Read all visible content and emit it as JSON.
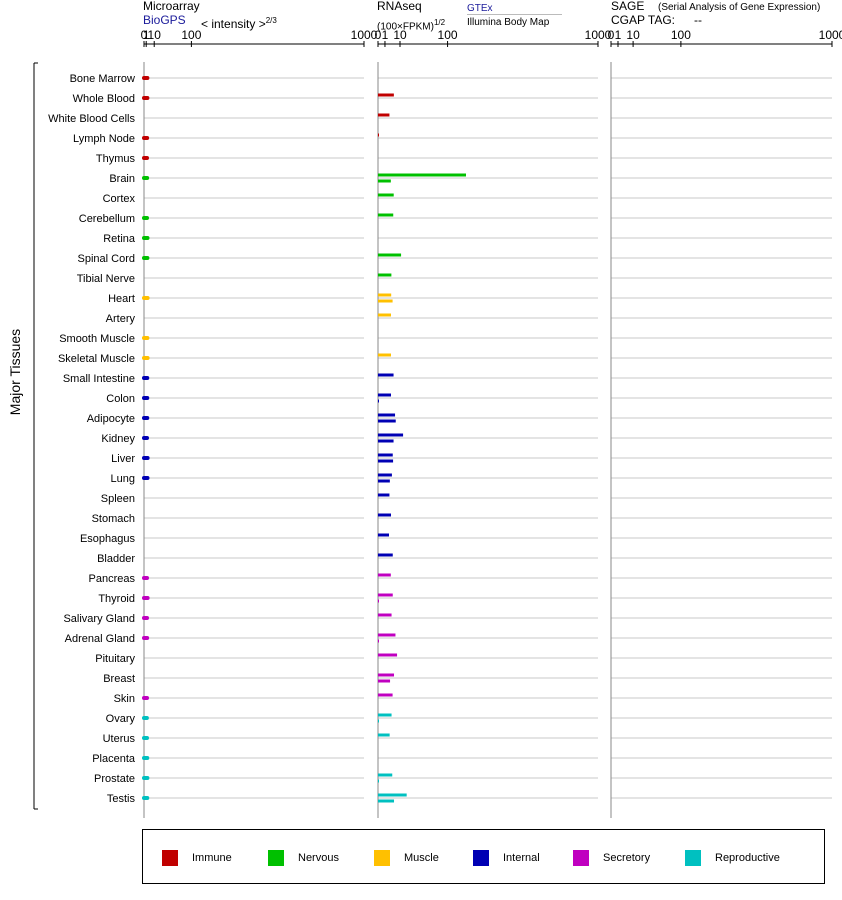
{
  "headers": {
    "microarray": {
      "title": "Microarray",
      "link": "BioGPS",
      "scale_label": "< intensity >",
      "scale_exp": "2/3"
    },
    "rnaseq": {
      "title": "RNAseq",
      "link": "GTEx",
      "scale_label": "(100×FPKM)",
      "scale_exp": "1/2",
      "second_label": "Illumina Body Map"
    },
    "sage": {
      "title": "SAGE",
      "subtitle": "(Serial Analysis of Gene Expression)",
      "tag_label": "CGAP TAG:",
      "tag_value": "--"
    }
  },
  "side_label": "Major Tissues",
  "colors": {
    "Immune": "#c00000",
    "Nervous": "#00c000",
    "Muscle": "#ffc000",
    "Internal": "#0000b4",
    "Secretory": "#c000c0",
    "Reproductive": "#00c0c0"
  },
  "legend": [
    "Immune",
    "Nervous",
    "Muscle",
    "Internal",
    "Secretory",
    "Reproductive"
  ],
  "chart_data": [
    {
      "type": "bar",
      "panel": "Microarray",
      "scale": "power-2/3",
      "xlim": [
        0,
        1000
      ],
      "x_ticks": [
        "0",
        "1",
        "10",
        "100",
        "1000"
      ],
      "categories": [
        "Bone Marrow",
        "Whole Blood",
        "White Blood Cells",
        "Lymph Node",
        "Thymus",
        "Brain",
        "Cortex",
        "Cerebellum",
        "Retina",
        "Spinal Cord",
        "Tibial Nerve",
        "Heart",
        "Artery",
        "Smooth Muscle",
        "Skeletal Muscle",
        "Small Intestine",
        "Colon",
        "Adipocyte",
        "Kidney",
        "Liver",
        "Lung",
        "Spleen",
        "Stomach",
        "Esophagus",
        "Bladder",
        "Pancreas",
        "Thyroid",
        "Salivary Gland",
        "Adrenal Gland",
        "Pituitary",
        "Breast",
        "Skin",
        "Ovary",
        "Uterus",
        "Placenta",
        "Prostate",
        "Testis"
      ],
      "groups": [
        "Immune",
        "Immune",
        "Immune",
        "Immune",
        "Immune",
        "Nervous",
        "Nervous",
        "Nervous",
        "Nervous",
        "Nervous",
        "Nervous",
        "Muscle",
        "Muscle",
        "Muscle",
        "Muscle",
        "Internal",
        "Internal",
        "Internal",
        "Internal",
        "Internal",
        "Internal",
        "Internal",
        "Internal",
        "Internal",
        "Internal",
        "Secretory",
        "Secretory",
        "Secretory",
        "Secretory",
        "Secretory",
        "Secretory",
        "Secretory",
        "Reproductive",
        "Reproductive",
        "Reproductive",
        "Reproductive",
        "Reproductive"
      ],
      "values": [
        1.9,
        1.9,
        null,
        1.7,
        1.6,
        1.7,
        null,
        1.6,
        2.0,
        1.9,
        null,
        2.1,
        null,
        1.9,
        2.1,
        1.8,
        1.8,
        1.8,
        1.6,
        2.1,
        2.0,
        null,
        null,
        null,
        null,
        1.6,
        2.1,
        1.6,
        1.7,
        null,
        null,
        1.6,
        1.5,
        1.6,
        1.8,
        1.9,
        1.8
      ]
    },
    {
      "type": "bar",
      "panel": "RNAseq",
      "scale": "power-1/2",
      "xlim": [
        0,
        1000
      ],
      "x_ticks": [
        "0",
        "1",
        "10",
        "100",
        "1000"
      ],
      "series": [
        {
          "name": "GTEx",
          "values": [
            null,
            5.2,
            2.7,
            0.01,
            null,
            160,
            5.1,
            4.8,
            null,
            11,
            3.7,
            3.6,
            3.5,
            null,
            3.5,
            5.0,
            3.5,
            6.0,
            13,
            4.5,
            4.0,
            2.7,
            3.5,
            2.5,
            4.5,
            3.4,
            4.5,
            3.8,
            6.3,
            7.5,
            5.3,
            4.4,
            3.8,
            2.8,
            null,
            4.2,
            17
          ]
        },
        {
          "name": "Illumina Body Map",
          "values": [
            null,
            null,
            null,
            null,
            null,
            3.4,
            null,
            null,
            null,
            null,
            null,
            4.4,
            null,
            null,
            null,
            null,
            0.02,
            6.5,
            5.0,
            4.7,
            2.9,
            null,
            null,
            null,
            null,
            null,
            0.02,
            null,
            0.02,
            null,
            3.0,
            null,
            0.02,
            null,
            null,
            0.02,
            5.3
          ]
        }
      ]
    },
    {
      "type": "bar",
      "panel": "SAGE",
      "xlim": [
        0,
        1000
      ],
      "x_ticks": [
        "0",
        "1",
        "10",
        "100",
        "1000"
      ],
      "values": []
    }
  ]
}
